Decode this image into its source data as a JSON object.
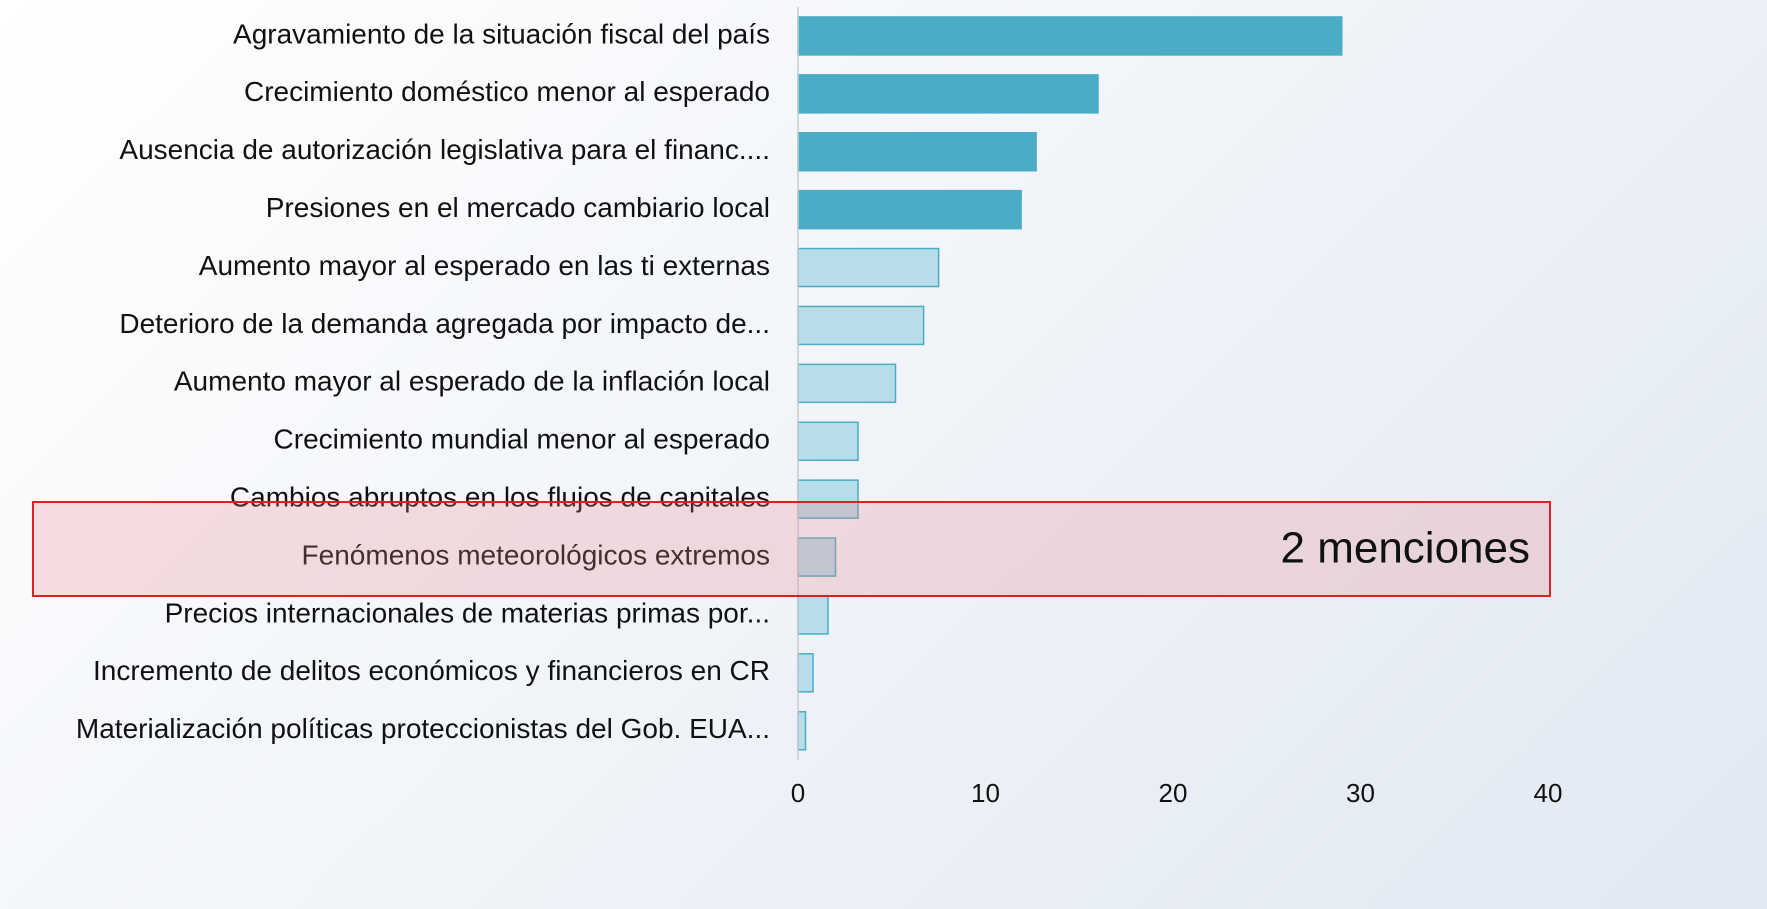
{
  "chart_data": {
    "type": "bar",
    "orientation": "horizontal",
    "categories": [
      "Agravamiento de la situación fiscal del país",
      "Crecimiento doméstico menor al esperado",
      "Ausencia de autorización legislativa para el financ....",
      "Presiones en el mercado cambiario local",
      "Aumento mayor al esperado en las ti externas",
      "Deterioro de la demanda agregada por impacto de...",
      "Aumento mayor al esperado de la inflación local",
      "Crecimiento mundial menor al esperado",
      "Cambios abruptos en los flujos de capitales",
      "Fenómenos meteorológicos extremos",
      "Precios internacionales de materias primas por...",
      "Incremento de delitos económicos y financieros en CR",
      "Materialización políticas proteccionistas del Gob. EUA..."
    ],
    "values": [
      29,
      16,
      12.7,
      11.9,
      7.5,
      6.7,
      5.2,
      3.2,
      3.2,
      2,
      1.6,
      0.8,
      0.4
    ],
    "colors": [
      "#4bacc6",
      "#4bacc6",
      "#4bacc6",
      "#4bacc6",
      "#b7dde8",
      "#b7dde8",
      "#b7dde8",
      "#b7dde8",
      "#b7dde8",
      "#b7dde8",
      "#b7dde8",
      "#b7dde8",
      "#b7dde8"
    ],
    "xlim": [
      0,
      40
    ],
    "xticks": [
      0,
      10,
      20,
      30,
      40
    ],
    "annotation": "2 menciones"
  }
}
